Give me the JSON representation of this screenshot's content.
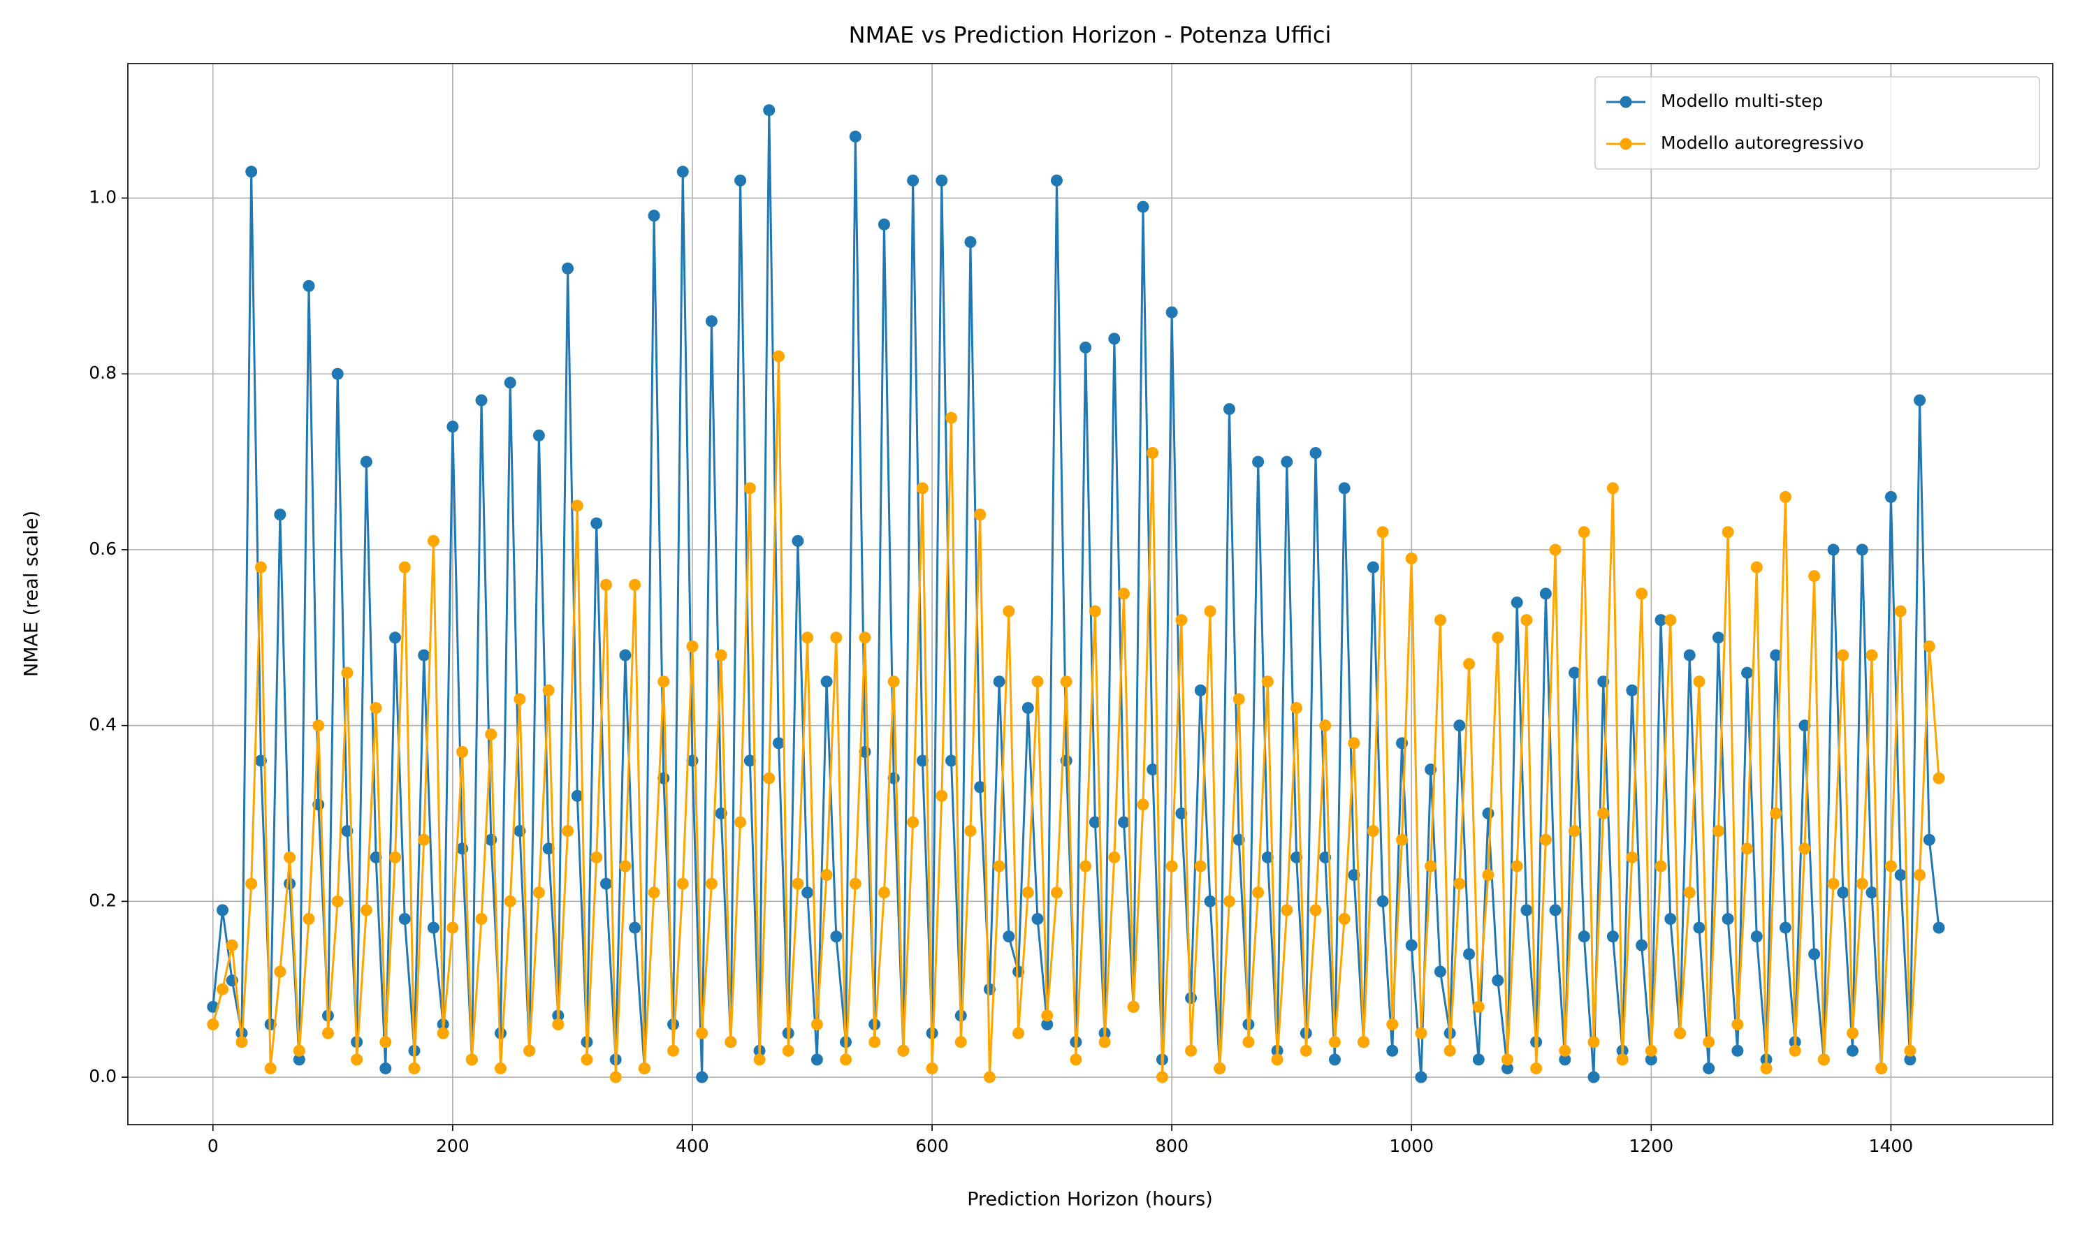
{
  "chart_data": {
    "type": "line",
    "title": "NMAE vs Prediction Horizon - Potenza Uffici",
    "xlabel": "Prediction Horizon (hours)",
    "ylabel": "NMAE (real scale)",
    "x": [
      0,
      8,
      16,
      24,
      32,
      40,
      48,
      56,
      64,
      72,
      80,
      88,
      96,
      104,
      112,
      120,
      128,
      136,
      144,
      152,
      160,
      168,
      176,
      184,
      192,
      200,
      208,
      216,
      224,
      232,
      240,
      248,
      256,
      264,
      272,
      280,
      288,
      296,
      304,
      312,
      320,
      328,
      336,
      344,
      352,
      360,
      368,
      376,
      384,
      392,
      400,
      408,
      416,
      424,
      432,
      440,
      448,
      456,
      464,
      472,
      480,
      488,
      496,
      504,
      512,
      520,
      528,
      536,
      544,
      552,
      560,
      568,
      576,
      584,
      592,
      600,
      608,
      616,
      624,
      632,
      640,
      648,
      656,
      664,
      672,
      680,
      688,
      696,
      704,
      712,
      720,
      728,
      736,
      744,
      752,
      760,
      768,
      776,
      784,
      792,
      800,
      808,
      816,
      824,
      832,
      840,
      848,
      856,
      864,
      872,
      880,
      888,
      896,
      904,
      912,
      920,
      928,
      936,
      944,
      952,
      960,
      968,
      976,
      984,
      992,
      1000,
      1008,
      1016,
      1024,
      1032,
      1040,
      1048,
      1056,
      1064,
      1072,
      1080,
      1088,
      1096,
      1104,
      1112,
      1120,
      1128,
      1136,
      1144,
      1152,
      1160,
      1168,
      1176,
      1184,
      1192,
      1200,
      1208,
      1216,
      1224,
      1232,
      1240,
      1248,
      1256,
      1264,
      1272,
      1280,
      1288,
      1296,
      1304,
      1312,
      1320,
      1328,
      1336,
      1344,
      1352,
      1360,
      1368,
      1376,
      1384,
      1392,
      1400,
      1408,
      1416,
      1424,
      1432,
      1440
    ],
    "series": [
      {
        "name": "Modello multi-step",
        "color": "#1f77b4",
        "values": [
          0.08,
          0.19,
          0.11,
          0.05,
          1.03,
          0.36,
          0.06,
          0.64,
          0.22,
          0.02,
          0.9,
          0.31,
          0.07,
          0.8,
          0.28,
          0.04,
          0.7,
          0.25,
          0.01,
          0.5,
          0.18,
          0.03,
          0.48,
          0.17,
          0.06,
          0.74,
          0.26,
          0.02,
          0.77,
          0.27,
          0.05,
          0.79,
          0.28,
          0.03,
          0.73,
          0.26,
          0.07,
          0.92,
          0.32,
          0.04,
          0.63,
          0.22,
          0.02,
          0.48,
          0.17,
          0.01,
          0.98,
          0.34,
          0.06,
          1.03,
          0.36,
          0.0,
          0.86,
          0.3,
          0.04,
          1.02,
          0.36,
          0.03,
          1.1,
          0.38,
          0.05,
          0.61,
          0.21,
          0.02,
          0.45,
          0.16,
          0.04,
          1.07,
          0.37,
          0.06,
          0.97,
          0.34,
          0.03,
          1.02,
          0.36,
          0.05,
          1.02,
          0.36,
          0.07,
          0.95,
          0.33,
          0.1,
          0.45,
          0.16,
          0.12,
          0.42,
          0.18,
          0.06,
          1.02,
          0.36,
          0.04,
          0.83,
          0.29,
          0.05,
          0.84,
          0.29,
          0.08,
          0.99,
          0.35,
          0.02,
          0.87,
          0.3,
          0.09,
          0.44,
          0.2,
          0.01,
          0.76,
          0.27,
          0.06,
          0.7,
          0.25,
          0.03,
          0.7,
          0.25,
          0.05,
          0.71,
          0.25,
          0.02,
          0.67,
          0.23,
          0.04,
          0.58,
          0.2,
          0.03,
          0.38,
          0.15,
          0.0,
          0.35,
          0.12,
          0.05,
          0.4,
          0.14,
          0.02,
          0.3,
          0.11,
          0.01,
          0.54,
          0.19,
          0.04,
          0.55,
          0.19,
          0.02,
          0.46,
          0.16,
          0.0,
          0.45,
          0.16,
          0.03,
          0.44,
          0.15,
          0.02,
          0.52,
          0.18,
          0.05,
          0.48,
          0.17,
          0.01,
          0.5,
          0.18,
          0.03,
          0.46,
          0.16,
          0.02,
          0.48,
          0.17,
          0.04,
          0.4,
          0.14,
          0.02,
          0.6,
          0.21,
          0.03,
          0.6,
          0.21,
          0.01,
          0.66,
          0.23,
          0.02,
          0.77,
          0.27,
          0.17
        ]
      },
      {
        "name": "Modello autoregressivo",
        "color": "#ffa500",
        "values": [
          0.06,
          0.1,
          0.15,
          0.04,
          0.22,
          0.58,
          0.01,
          0.12,
          0.25,
          0.03,
          0.18,
          0.4,
          0.05,
          0.2,
          0.46,
          0.02,
          0.19,
          0.42,
          0.04,
          0.25,
          0.58,
          0.01,
          0.27,
          0.61,
          0.05,
          0.17,
          0.37,
          0.02,
          0.18,
          0.39,
          0.01,
          0.2,
          0.43,
          0.03,
          0.21,
          0.44,
          0.06,
          0.28,
          0.65,
          0.02,
          0.25,
          0.56,
          0.0,
          0.24,
          0.56,
          0.01,
          0.21,
          0.45,
          0.03,
          0.22,
          0.49,
          0.05,
          0.22,
          0.48,
          0.04,
          0.29,
          0.67,
          0.02,
          0.34,
          0.82,
          0.03,
          0.22,
          0.5,
          0.06,
          0.23,
          0.5,
          0.02,
          0.22,
          0.5,
          0.04,
          0.21,
          0.45,
          0.03,
          0.29,
          0.67,
          0.01,
          0.32,
          0.75,
          0.04,
          0.28,
          0.64,
          0.0,
          0.24,
          0.53,
          0.05,
          0.21,
          0.45,
          0.07,
          0.21,
          0.45,
          0.02,
          0.24,
          0.53,
          0.04,
          0.25,
          0.55,
          0.08,
          0.31,
          0.71,
          0.0,
          0.24,
          0.52,
          0.03,
          0.24,
          0.53,
          0.01,
          0.2,
          0.43,
          0.04,
          0.21,
          0.45,
          0.02,
          0.19,
          0.42,
          0.03,
          0.19,
          0.4,
          0.04,
          0.18,
          0.38,
          0.04,
          0.28,
          0.62,
          0.06,
          0.27,
          0.59,
          0.05,
          0.24,
          0.52,
          0.03,
          0.22,
          0.47,
          0.08,
          0.23,
          0.5,
          0.02,
          0.24,
          0.52,
          0.01,
          0.27,
          0.6,
          0.03,
          0.28,
          0.62,
          0.04,
          0.3,
          0.67,
          0.02,
          0.25,
          0.55,
          0.03,
          0.24,
          0.52,
          0.05,
          0.21,
          0.45,
          0.04,
          0.28,
          0.62,
          0.06,
          0.26,
          0.58,
          0.01,
          0.3,
          0.66,
          0.03,
          0.26,
          0.57,
          0.02,
          0.22,
          0.48,
          0.05,
          0.22,
          0.48,
          0.01,
          0.24,
          0.53,
          0.03,
          0.23,
          0.49,
          0.34
        ]
      }
    ],
    "xlim": [
      -71,
      1535
    ],
    "xticks": [
      0,
      200,
      400,
      600,
      800,
      1000,
      1200,
      1400
    ],
    "ylim": [
      -0.054,
      1.153
    ],
    "yticks": [
      {
        "value": 0,
        "label": "0.0"
      },
      {
        "value": 0.2,
        "label": "0.2"
      },
      {
        "value": 0.4,
        "label": "0.4"
      },
      {
        "value": 0.6,
        "label": "0.6"
      },
      {
        "value": 0.8,
        "label": "0.8"
      },
      {
        "value": 1,
        "label": "1.0"
      }
    ],
    "grid": true,
    "legend": "upper-right"
  }
}
